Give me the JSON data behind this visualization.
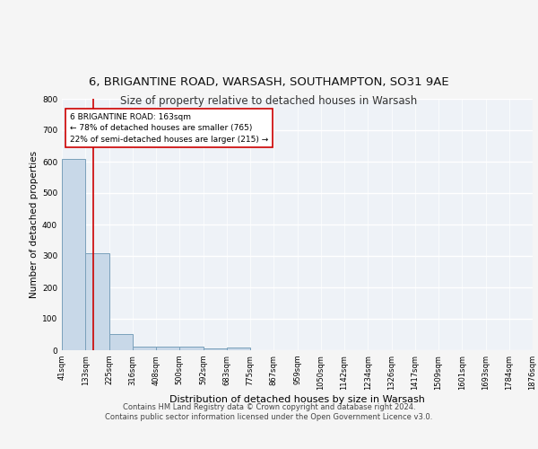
{
  "title1": "6, BRIGANTINE ROAD, WARSASH, SOUTHAMPTON, SO31 9AE",
  "title2": "Size of property relative to detached houses in Warsash",
  "xlabel": "Distribution of detached houses by size in Warsash",
  "ylabel": "Number of detached properties",
  "bar_edges": [
    41,
    133,
    225,
    316,
    408,
    500,
    592,
    683,
    775,
    867,
    959,
    1050,
    1142,
    1234,
    1326,
    1417,
    1509,
    1601,
    1693,
    1784,
    1876
  ],
  "bar_heights": [
    608,
    310,
    52,
    11,
    12,
    11,
    5,
    8,
    0,
    0,
    0,
    0,
    0,
    0,
    0,
    0,
    0,
    0,
    0,
    0
  ],
  "bar_color": "#c8d8e8",
  "bar_edge_color": "#7aa0bb",
  "vline_x": 163,
  "vline_color": "#cc0000",
  "annotation_line1": "6 BRIGANTINE ROAD: 163sqm",
  "annotation_line2": "← 78% of detached houses are smaller (765)",
  "annotation_line3": "22% of semi-detached houses are larger (215) →",
  "annotation_box_color": "#ffffff",
  "annotation_box_edge_color": "#cc0000",
  "ylim": [
    0,
    800
  ],
  "yticks": [
    0,
    100,
    200,
    300,
    400,
    500,
    600,
    700,
    800
  ],
  "footer_line1": "Contains HM Land Registry data © Crown copyright and database right 2024.",
  "footer_line2": "Contains public sector information licensed under the Open Government Licence v3.0.",
  "bg_color": "#eef2f7",
  "grid_color": "#ffffff",
  "title1_fontsize": 9.5,
  "title2_fontsize": 8.5,
  "ylabel_fontsize": 7.5,
  "xlabel_fontsize": 8,
  "tick_fontsize": 6,
  "footer_fontsize": 6,
  "tick_labels": [
    "41sqm",
    "133sqm",
    "225sqm",
    "316sqm",
    "408sqm",
    "500sqm",
    "592sqm",
    "683sqm",
    "775sqm",
    "867sqm",
    "959sqm",
    "1050sqm",
    "1142sqm",
    "1234sqm",
    "1326sqm",
    "1417sqm",
    "1509sqm",
    "1601sqm",
    "1693sqm",
    "1784sqm",
    "1876sqm"
  ]
}
